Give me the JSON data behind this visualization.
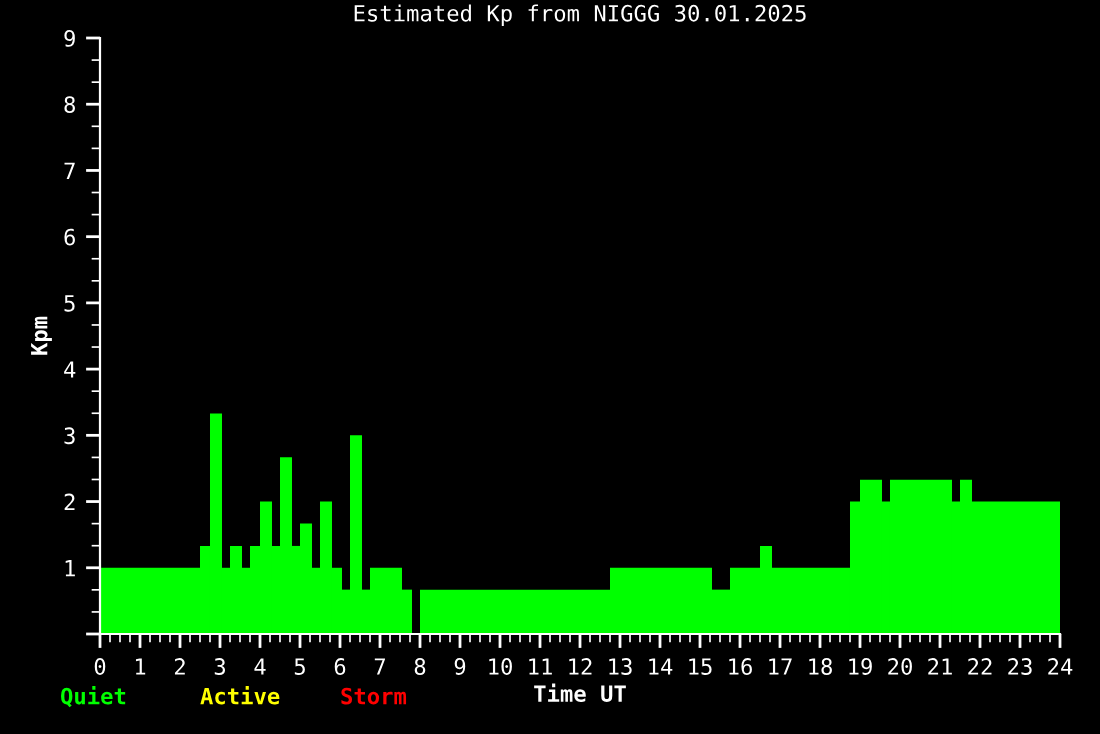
{
  "chart_data": {
    "type": "histogram",
    "title": "Estimated Kp from NIGGG 30.01.2025",
    "xlabel": "Time UT",
    "ylabel": "Kpm",
    "color": "#00ff00",
    "bins": [
      0,
      2.5,
      2.75,
      3.05,
      3.25,
      3.55,
      3.75,
      4,
      4.3,
      4.5,
      4.8,
      5,
      5.3,
      5.5,
      5.8,
      6.05,
      6.25,
      6.55,
      6.75,
      7.55,
      7.8,
      8,
      12.75,
      15.3,
      15.75,
      16.5,
      16.8,
      18.75,
      19,
      19.55,
      19.75,
      21.3,
      21.5,
      21.8,
      24
    ],
    "values": [
      1,
      1.33,
      3.33,
      1,
      1.33,
      1,
      1.33,
      2,
      1.33,
      2.67,
      1.33,
      1.67,
      1,
      2,
      1,
      0.67,
      3,
      0.67,
      1,
      0.67,
      0,
      0.67,
      1,
      0.67,
      1,
      1.33,
      1,
      2,
      2.33,
      2,
      2.33,
      2,
      2.33,
      2
    ],
    "xlim": [
      0,
      24
    ],
    "xticks": [
      0,
      1,
      2,
      3,
      4,
      5,
      6,
      7,
      8,
      9,
      10,
      11,
      12,
      13,
      14,
      15,
      16,
      17,
      18,
      19,
      20,
      21,
      22,
      23,
      24
    ],
    "ylim": [
      0,
      9
    ],
    "yticks": [
      {
        "value": 0,
        "label": null
      },
      1,
      2,
      3,
      4,
      5,
      6,
      7,
      8,
      9
    ],
    "annotations": [
      "Quiet",
      "Active",
      "Storm"
    ],
    "grid": false,
    "legend": false
  }
}
